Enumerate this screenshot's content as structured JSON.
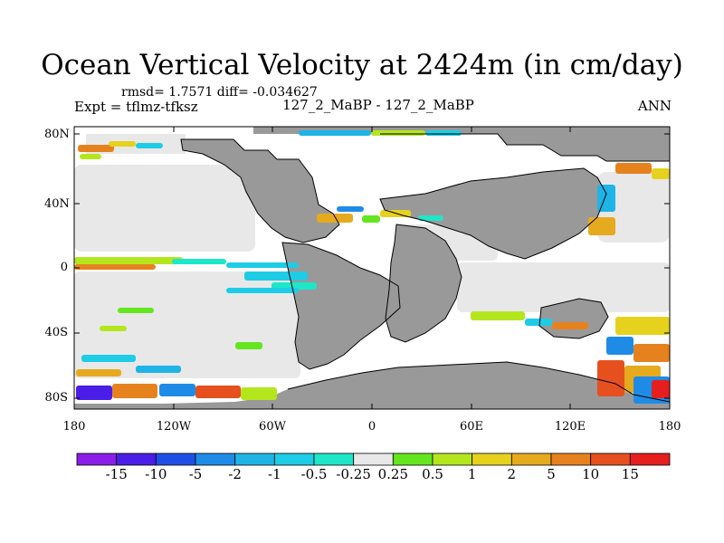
{
  "title": "Ocean Vertical Velocity at 2424m (in cm/day)",
  "stats": "rmsd= 1.7571 diff= -0.034627",
  "expt": "Expt = tflmz-tfksz",
  "center_label": "127_2_MaBP - 127_2_MaBP",
  "season": "ANN",
  "y_ticks": [
    "80N",
    "40N",
    "0",
    "40S",
    "80S"
  ],
  "x_ticks": [
    "180",
    "120W",
    "60W",
    "0",
    "60E",
    "120E",
    "180"
  ],
  "colorbar": {
    "labels": [
      "-15",
      "-10",
      "-5",
      "-2",
      "-1",
      "-0.5",
      "-0.25",
      "0.25",
      "0.5",
      "1",
      "2",
      "5",
      "10",
      "15"
    ],
    "colors": [
      "#8a1ee6",
      "#4a1ee6",
      "#1e50e6",
      "#1e8ce6",
      "#1eb4e6",
      "#1ecce6",
      "#1ee6c8",
      "#e8e8e8",
      "#64e61e",
      "#b4e61e",
      "#e6d21e",
      "#e6aa1e",
      "#e6821e",
      "#e6501e",
      "#e61e1e"
    ]
  },
  "map_colors": {
    "land": "#999999",
    "ocean_neutral": "#e8e8e8",
    "background": "#ffffff",
    "coast": "#000000"
  }
}
